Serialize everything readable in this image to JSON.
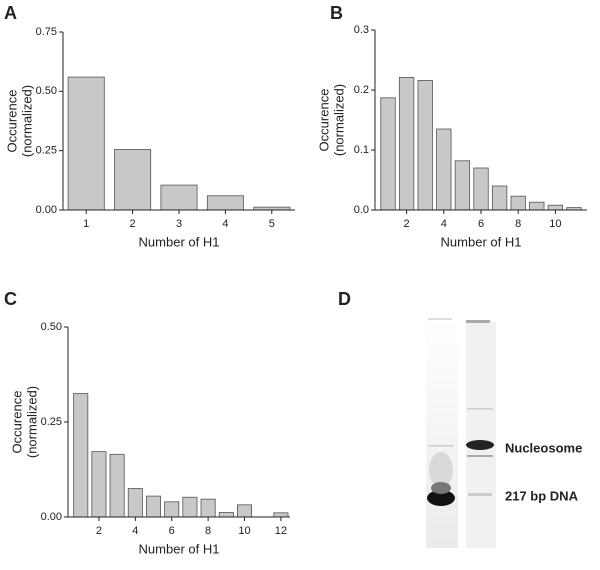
{
  "panel_labels": [
    "A",
    "B",
    "C",
    "D"
  ],
  "gel": {
    "labels": [
      "Nucleosome",
      "217 bp DNA"
    ]
  },
  "chart_data": [
    {
      "type": "bar",
      "categories": [
        "1",
        "2",
        "3",
        "4",
        "5"
      ],
      "values": [
        0.56,
        0.255,
        0.105,
        0.06,
        0.012
      ],
      "color": "#c8c8c8",
      "ylim": [
        0,
        0.75
      ],
      "yticks": [
        {
          "value": 0,
          "label": "0.00"
        },
        0.25,
        {
          "value": 0.5,
          "label": "0.50"
        },
        0.75
      ],
      "xlabel": "Number of H1",
      "ylabel": [
        "Occurence",
        "(normalized)"
      ]
    },
    {
      "type": "bar",
      "x": [
        1,
        2,
        3,
        4,
        5,
        6,
        7,
        8,
        9,
        10,
        11
      ],
      "values": [
        0.187,
        0.221,
        0.216,
        0.135,
        0.082,
        0.07,
        0.04,
        0.023,
        0.013,
        0.008,
        0.004
      ],
      "color": "#c8c8c8",
      "xlim": [
        0.3,
        11.7
      ],
      "xticks": [
        2,
        4,
        6,
        8,
        10
      ],
      "ylim": [
        0,
        0.3
      ],
      "yticks": [
        {
          "value": 0,
          "label": "0.0"
        },
        0.1,
        0.2,
        0.3
      ],
      "xlabel": "Number of H1",
      "ylabel": [
        "Occurence",
        "(normalized)"
      ]
    },
    {
      "type": "bar",
      "x": [
        1,
        2,
        3,
        4,
        5,
        6,
        7,
        8,
        9,
        10,
        11,
        12
      ],
      "values": [
        0.325,
        0.172,
        0.165,
        0.075,
        0.055,
        0.04,
        0.052,
        0.047,
        0.012,
        0.032,
        0,
        0.011
      ],
      "color": "#c8c8c8",
      "xlim": [
        0.3,
        12.5
      ],
      "xticks": [
        2,
        4,
        6,
        8,
        10,
        12
      ],
      "ylim": [
        0,
        0.5
      ],
      "yticks": [
        {
          "value": 0,
          "label": "0.00"
        },
        {
          "value": 0.25,
          "label": "0.25"
        },
        {
          "value": 0.5,
          "label": "0.50"
        }
      ],
      "xlabel": "Number of H1",
      "ylabel": [
        "Occurence",
        "(normalized)"
      ]
    }
  ]
}
